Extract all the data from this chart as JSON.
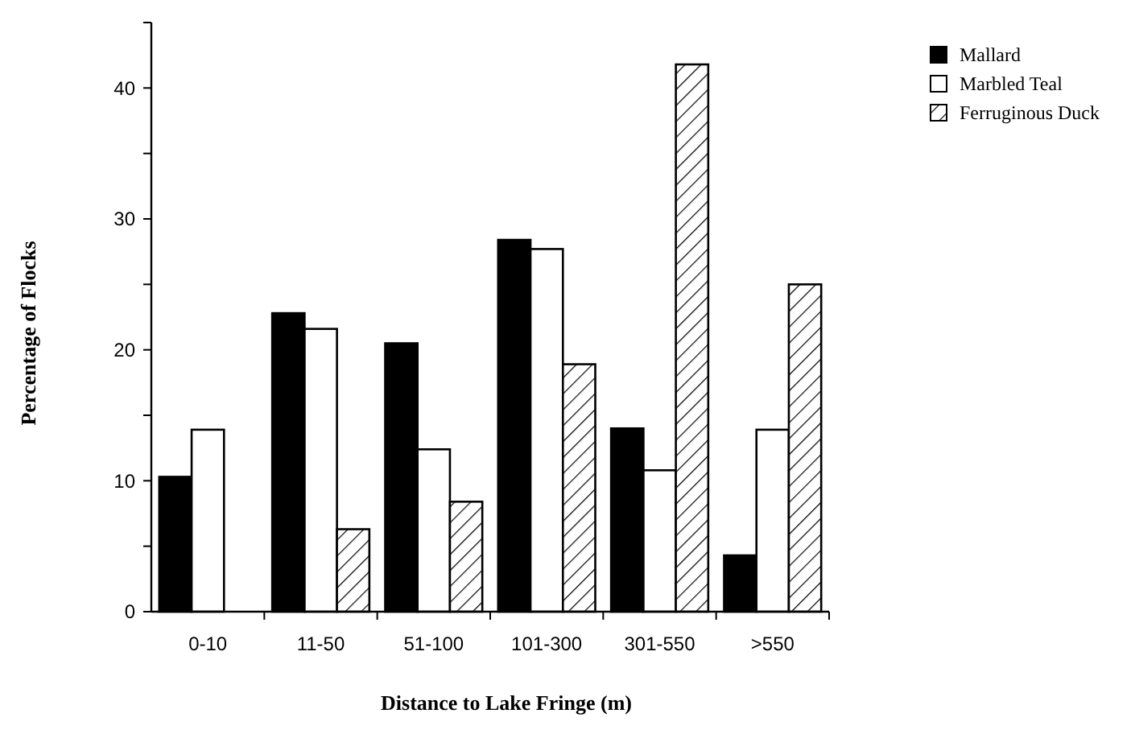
{
  "chart_data": {
    "type": "bar",
    "xlabel": "Distance to Lake Fringe (m)",
    "ylabel": "Percentage of Flocks",
    "categories": [
      "0-10",
      "11-50",
      "51-100",
      "101-300",
      "301-550",
      ">550"
    ],
    "series": [
      {
        "name": "Mallard",
        "color": "#000000",
        "values": [
          10.3,
          22.8,
          20.5,
          28.4,
          14.0,
          4.3
        ]
      },
      {
        "name": "Marbled Teal",
        "color": "#ffffff",
        "values": [
          13.9,
          21.6,
          12.4,
          27.7,
          10.8,
          13.9
        ]
      },
      {
        "name": "Ferruginous Duck",
        "color": "#000000",
        "values": [
          0,
          6.3,
          8.4,
          18.9,
          41.8,
          25.0
        ]
      }
    ],
    "ylim": [
      0,
      45
    ],
    "yticks": [
      0,
      {
        "value": 5,
        "label": null
      },
      10,
      {
        "value": 15,
        "label": null
      },
      20,
      {
        "value": 25,
        "label": null
      },
      30,
      {
        "value": 35,
        "label": null
      },
      40,
      {
        "value": 45,
        "label": null
      }
    ],
    "legend": "right",
    "grid": false
  }
}
